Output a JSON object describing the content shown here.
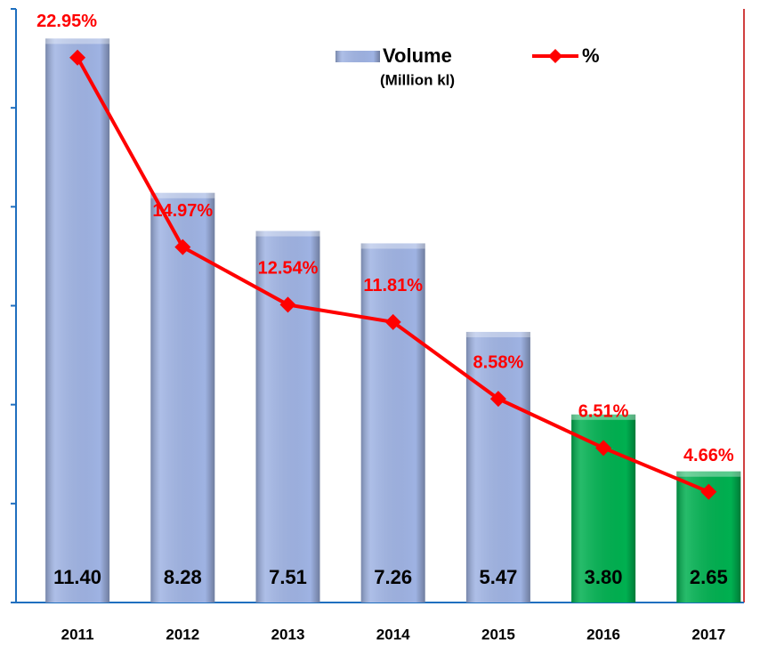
{
  "chart_data": {
    "type": "bar",
    "categories": [
      "2011",
      "2012",
      "2013",
      "2014",
      "2015",
      "2016",
      "2017"
    ],
    "series": [
      {
        "name": "Volume",
        "unit": "(Million kl)",
        "type": "bar",
        "color": "#9fb3e3",
        "colors": [
          "#9fb3e3",
          "#9fb3e3",
          "#9fb3e3",
          "#9fb3e3",
          "#9fb3e3",
          "#00b050",
          "#00b050"
        ],
        "values": [
          11.4,
          8.28,
          7.51,
          7.26,
          5.47,
          3.8,
          2.65
        ],
        "value_labels": [
          "11.40",
          "8.28",
          "7.51",
          "7.26",
          "5.47",
          "3.80",
          "2.65"
        ]
      },
      {
        "name": "%",
        "type": "line",
        "axis": "y2",
        "color": "#ff0000",
        "values": [
          22.95,
          14.97,
          12.54,
          11.81,
          8.58,
          6.51,
          4.66
        ],
        "value_labels": [
          "22.95%",
          "14.97%",
          "12.54%",
          "11.81%",
          "8.58%",
          "6.51%",
          "4.66%"
        ]
      }
    ],
    "ylim": [
      0,
      12
    ],
    "yticks": [
      0,
      2,
      4,
      6,
      8,
      10,
      12
    ],
    "y2lim": [
      0,
      25
    ]
  }
}
